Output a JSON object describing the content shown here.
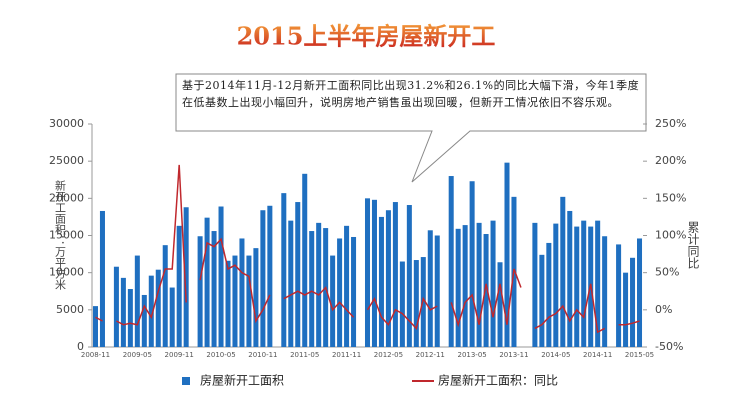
{
  "chart_data": {
    "type": "bar-line",
    "title": "2015上半年房屋新开工",
    "annotation": "基于2014年11月-12月新开工面积同比出现31.2%和26.1%的同比大幅下滑，今年1季度在低基数上出现小幅回升，说明房地产销售虽出现回暖，但新开工情况依旧不容乐观。",
    "y_label": "新开工面积：万平方米",
    "y2_label": "累计同比",
    "categories": [
      "2008-11",
      null,
      null,
      null,
      null,
      null,
      "2009-05",
      null,
      null,
      null,
      null,
      null,
      "2009-11",
      null,
      null,
      null,
      null,
      null,
      "2010-05",
      null,
      null,
      null,
      null,
      null,
      "2010-11",
      null,
      null,
      null,
      null,
      null,
      "2011-05",
      null,
      null,
      null,
      null,
      null,
      "2011-11",
      null,
      null,
      null,
      null,
      null,
      "2012-05",
      null,
      null,
      null,
      null,
      null,
      "2012-11",
      null,
      null,
      null,
      null,
      null,
      "2013-05",
      null,
      null,
      null,
      null,
      null,
      "2013-11",
      null,
      null,
      null,
      null,
      null,
      "2014-05",
      null,
      null,
      null,
      null,
      null,
      "2014-11",
      null,
      null,
      null,
      null,
      null,
      "2015-05"
    ],
    "series": [
      {
        "name": "房屋新开工面积",
        "color": "#1f6fc0",
        "values": [
          5500,
          18300,
          null,
          10800,
          9300,
          7800,
          12300,
          7000,
          9600,
          10400,
          13700,
          8000,
          16300,
          18800,
          null,
          14900,
          17400,
          15600,
          18900,
          11600,
          12300,
          14600,
          12300,
          13300,
          18400,
          19000,
          null,
          20700,
          17000,
          19500,
          23300,
          15600,
          16700,
          16000,
          12300,
          14600,
          16300,
          14800,
          null,
          20000,
          19800,
          17500,
          18400,
          19500,
          11500,
          19100,
          11700,
          12100,
          15700,
          15000,
          null,
          23000,
          15900,
          16400,
          22300,
          16700,
          15200,
          17000,
          11400,
          24800,
          20200,
          null,
          null,
          16700,
          12400,
          14000,
          16600,
          20200,
          18300,
          16200,
          17000,
          16200,
          17000,
          14900,
          null,
          13800,
          10000,
          12000,
          14600
        ]
      },
      {
        "name": "房屋新开工面积：同比",
        "color": "#c0282d",
        "axis": "y2",
        "values": [
          -10,
          -15,
          null,
          -15,
          -20,
          -18,
          -20,
          5,
          -10,
          25,
          55,
          55,
          195,
          10,
          null,
          40,
          90,
          85,
          95,
          55,
          60,
          50,
          45,
          -15,
          0,
          20,
          null,
          15,
          20,
          25,
          20,
          25,
          20,
          30,
          0,
          10,
          0,
          -10,
          null,
          0,
          15,
          -10,
          -20,
          0,
          -5,
          -15,
          -25,
          15,
          0,
          5,
          null,
          10,
          -20,
          10,
          20,
          -20,
          35,
          -10,
          35,
          -20,
          55,
          30,
          null,
          -25,
          -20,
          -10,
          -5,
          5,
          -15,
          0,
          -10,
          35,
          -30,
          -25,
          null,
          -20,
          -20,
          -18,
          -15
        ]
      }
    ],
    "ylim": [
      0,
      30000
    ],
    "yticks": [
      0,
      5000,
      10000,
      15000,
      20000,
      25000,
      30000
    ],
    "y2lim": [
      -50,
      250
    ],
    "y2ticks": [
      {
        "value": -50,
        "label": "-50%"
      },
      {
        "value": 0,
        "label": "0%"
      },
      {
        "value": 50,
        "label": "50%"
      },
      {
        "value": 100,
        "label": "100%"
      },
      {
        "value": 150,
        "label": "150%"
      },
      {
        "value": 200,
        "label": "200%"
      },
      {
        "value": 250,
        "label": "250%"
      }
    ],
    "legend": "bottom"
  }
}
